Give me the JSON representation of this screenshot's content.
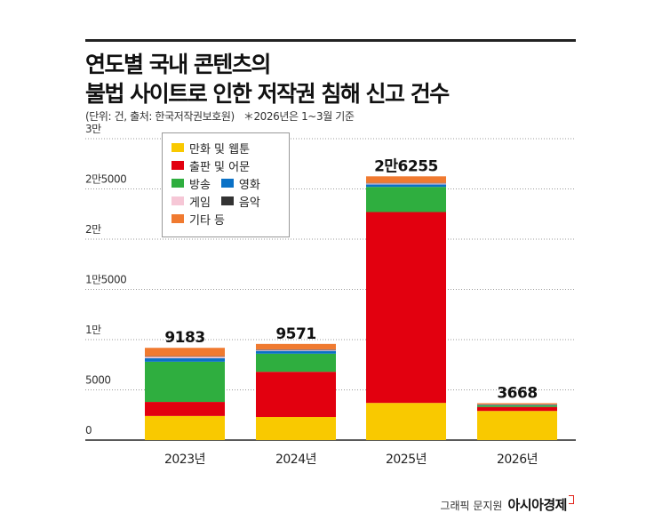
{
  "title_lines": [
    "연도별 국내 콘텐츠의",
    "불법 사이트로 인한 저작권 침해 신고 건수"
  ],
  "subtitle": "(단위: 건, 출처: 한국저작권보호원)",
  "note": "＊2026년은 1~3월 기준",
  "credit": "그래픽 문지원",
  "brand": "아시아경제",
  "legend_rows": [
    [
      {
        "name": "만화 및 웹툰",
        "color": "#f9c900"
      }
    ],
    [
      {
        "name": "출판 및 어문",
        "color": "#e2000f"
      }
    ],
    [
      {
        "name": "방송",
        "color": "#2fae3f"
      },
      {
        "name": "영화",
        "color": "#0a71c6"
      }
    ],
    [
      {
        "name": "게임",
        "color": "#f6c7d6"
      },
      {
        "name": "음악",
        "color": "#333333"
      }
    ],
    [
      {
        "name": "기타 등",
        "color": "#f07a30"
      }
    ]
  ],
  "chart_data": {
    "type": "bar",
    "stacked": true,
    "categories": [
      "2023년",
      "2024년",
      "2025년",
      "2026년"
    ],
    "totals_labels": [
      "9183",
      "9571",
      "2만6255",
      "3668"
    ],
    "totals": [
      9183,
      9571,
      26255,
      3668
    ],
    "yticks": [
      {
        "value": 0,
        "label": "0"
      },
      {
        "value": 5000,
        "label": "5000"
      },
      {
        "value": 10000,
        "label": "1만"
      },
      {
        "value": 15000,
        "label": "1만5000"
      },
      {
        "value": 20000,
        "label": "2만"
      },
      {
        "value": 25000,
        "label": "2만5000"
      },
      {
        "value": 30000,
        "label": "3만"
      }
    ],
    "ylim": [
      0,
      30000
    ],
    "grid": true,
    "legend_position": "top-left",
    "series": [
      {
        "name": "만화 및 웹툰",
        "color": "#f9c900",
        "values": [
          2400,
          2300,
          3700,
          2900
        ]
      },
      {
        "name": "출판 및 어문",
        "color": "#e2000f",
        "values": [
          1400,
          4500,
          19000,
          400
        ]
      },
      {
        "name": "방송",
        "color": "#2fae3f",
        "values": [
          4000,
          1800,
          2500,
          150
        ]
      },
      {
        "name": "영화",
        "color": "#0a71c6",
        "values": [
          350,
          280,
          250,
          50
        ]
      },
      {
        "name": "게임",
        "color": "#f6c7d6",
        "values": [
          150,
          100,
          100,
          20
        ]
      },
      {
        "name": "음악",
        "color": "#333333",
        "values": [
          50,
          50,
          50,
          10
        ]
      },
      {
        "name": "기타 등",
        "color": "#f07a30",
        "values": [
          833,
          541,
          655,
          138
        ]
      }
    ]
  }
}
